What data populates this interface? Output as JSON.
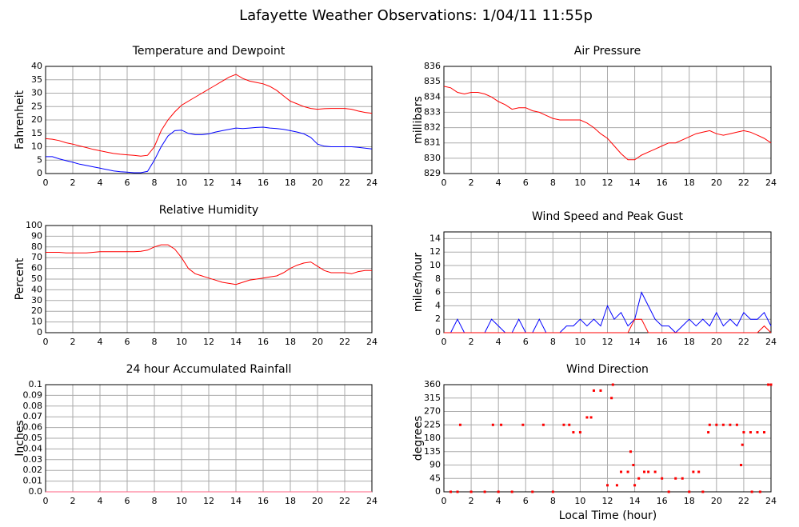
{
  "title": "Lafayette Weather Observations: 1/04/11 11:55p",
  "xlabel": "Local Time (hour)",
  "chart_data": [
    {
      "type": "line",
      "title": "Temperature and Dewpoint",
      "ylabel": "Fahrenheit",
      "x": [
        0,
        0.5,
        1,
        1.5,
        2,
        2.5,
        3,
        3.5,
        4,
        4.5,
        5,
        5.5,
        6,
        6.5,
        7,
        7.5,
        8,
        8.5,
        9,
        9.5,
        10,
        10.5,
        11,
        11.5,
        12,
        12.5,
        13,
        13.5,
        14,
        14.5,
        15,
        15.5,
        16,
        16.5,
        17,
        17.5,
        18,
        18.5,
        19,
        19.5,
        20,
        20.5,
        21,
        21.5,
        22,
        22.5,
        23,
        23.5,
        24
      ],
      "series": [
        {
          "color": "#ff0000",
          "values": [
            13,
            12.8,
            12.3,
            11.5,
            11,
            10.3,
            9.7,
            9,
            8.5,
            8,
            7.5,
            7.2,
            7,
            6.8,
            6.5,
            6.8,
            10,
            16,
            20,
            23,
            25.5,
            27,
            28.5,
            30,
            31.5,
            33,
            34.5,
            36,
            37,
            35.5,
            34.5,
            34,
            33.5,
            32.5,
            31,
            29,
            27,
            26,
            25,
            24.3,
            24,
            24.2,
            24.3,
            24.3,
            24.3,
            24,
            23.3,
            22.8,
            22.5
          ]
        },
        {
          "color": "#0000ff",
          "values": [
            6.3,
            6.3,
            5.5,
            4.8,
            4.2,
            3.5,
            3,
            2.5,
            2,
            1.5,
            1,
            0.7,
            0.5,
            0.3,
            0.3,
            0.8,
            5,
            10,
            14,
            16,
            16.2,
            15,
            14.5,
            14.5,
            14.8,
            15.5,
            16,
            16.5,
            17,
            16.8,
            17,
            17.2,
            17.3,
            17,
            16.8,
            16.5,
            16,
            15.5,
            14.8,
            13.5,
            11,
            10.2,
            10,
            10,
            10,
            10,
            9.8,
            9.5,
            9.2
          ]
        }
      ],
      "xlim": [
        0,
        24
      ],
      "xticks": [
        0,
        2,
        4,
        6,
        8,
        10,
        12,
        14,
        16,
        18,
        20,
        22,
        24
      ],
      "ylim": [
        0,
        40
      ],
      "yticks": [
        0,
        5,
        10,
        15,
        20,
        25,
        30,
        35,
        40
      ],
      "grid": true
    },
    {
      "type": "line",
      "title": "Air Pressure",
      "ylabel": "millibars",
      "x": [
        0,
        0.5,
        1,
        1.5,
        2,
        2.5,
        3,
        3.5,
        4,
        4.5,
        5,
        5.5,
        6,
        6.5,
        7,
        7.5,
        8,
        8.5,
        9,
        9.5,
        10,
        10.5,
        11,
        11.5,
        12,
        12.5,
        13,
        13.5,
        14,
        14.5,
        15,
        15.5,
        16,
        16.5,
        17,
        17.5,
        18,
        18.5,
        19,
        19.5,
        20,
        20.5,
        21,
        21.5,
        22,
        22.5,
        23,
        23.5,
        24
      ],
      "series": [
        {
          "color": "#ff0000",
          "values": [
            834.7,
            834.6,
            834.3,
            834.2,
            834.3,
            834.3,
            834.2,
            834,
            833.7,
            833.5,
            833.2,
            833.3,
            833.3,
            833.1,
            833,
            832.8,
            832.6,
            832.5,
            832.5,
            832.5,
            832.5,
            832.3,
            832,
            831.6,
            831.3,
            830.8,
            830.3,
            829.9,
            829.9,
            830.2,
            830.4,
            830.6,
            830.8,
            831,
            831,
            831.2,
            831.4,
            831.6,
            831.7,
            831.8,
            831.6,
            831.5,
            831.6,
            831.7,
            831.8,
            831.7,
            831.5,
            831.3,
            831
          ]
        }
      ],
      "xlim": [
        0,
        24
      ],
      "xticks": [
        0,
        2,
        4,
        6,
        8,
        10,
        12,
        14,
        16,
        18,
        20,
        22,
        24
      ],
      "ylim": [
        829,
        836
      ],
      "yticks": [
        829,
        830,
        831,
        832,
        833,
        834,
        835,
        836
      ],
      "grid": true
    },
    {
      "type": "line",
      "title": "Relative Humidity",
      "ylabel": "Percent",
      "x": [
        0,
        0.5,
        1,
        1.5,
        2,
        2.5,
        3,
        3.5,
        4,
        4.5,
        5,
        5.5,
        6,
        6.5,
        7,
        7.5,
        8,
        8.5,
        9,
        9.5,
        10,
        10.5,
        11,
        11.5,
        12,
        12.5,
        13,
        13.5,
        14,
        14.5,
        15,
        15.5,
        16,
        16.5,
        17,
        17.5,
        18,
        18.5,
        19,
        19.5,
        20,
        20.5,
        21,
        21.5,
        22,
        22.5,
        23,
        23.5,
        24
      ],
      "series": [
        {
          "color": "#ff0000",
          "values": [
            75,
            75,
            75,
            74.5,
            74.5,
            74.5,
            74.5,
            75,
            75.5,
            75.5,
            75.5,
            75.5,
            75.5,
            75.5,
            76,
            77,
            80,
            82,
            82,
            78,
            70,
            60,
            55,
            53,
            51,
            49,
            47,
            46,
            45,
            47,
            49,
            50,
            51,
            52,
            53,
            56,
            60,
            63,
            65,
            66,
            62,
            58,
            56,
            56,
            56,
            55,
            57,
            58,
            58
          ]
        }
      ],
      "xlim": [
        0,
        24
      ],
      "xticks": [
        0,
        2,
        4,
        6,
        8,
        10,
        12,
        14,
        16,
        18,
        20,
        22,
        24
      ],
      "ylim": [
        0,
        100
      ],
      "yticks": [
        0,
        10,
        20,
        30,
        40,
        50,
        60,
        70,
        80,
        90,
        100
      ],
      "grid": true
    },
    {
      "type": "line",
      "title": "Wind Speed and Peak Gust",
      "ylabel": "miles/hour",
      "x": [
        0,
        0.5,
        1,
        1.5,
        2,
        2.5,
        3,
        3.5,
        4,
        4.5,
        5,
        5.5,
        6,
        6.5,
        7,
        7.5,
        8,
        8.5,
        9,
        9.5,
        10,
        10.5,
        11,
        11.5,
        12,
        12.5,
        13,
        13.5,
        14,
        14.5,
        15,
        15.5,
        16,
        16.5,
        17,
        17.5,
        18,
        18.5,
        19,
        19.5,
        20,
        20.5,
        21,
        21.5,
        22,
        22.5,
        23,
        23.5,
        24
      ],
      "series": [
        {
          "color": "#0000ff",
          "values": [
            0,
            0,
            2,
            0,
            0,
            0,
            0,
            2,
            1,
            0,
            0,
            2,
            0,
            0,
            2,
            0,
            0,
            0,
            1,
            1,
            2,
            1,
            2,
            1,
            4,
            2,
            3,
            1,
            2,
            6,
            4,
            2,
            1,
            1,
            0,
            1,
            2,
            1,
            2,
            1,
            3,
            1,
            2,
            1,
            3,
            2,
            2,
            3,
            1
          ]
        },
        {
          "color": "#ff0000",
          "values": [
            0,
            0,
            0,
            0,
            0,
            0,
            0,
            0,
            0,
            0,
            0,
            0,
            0,
            0,
            0,
            0,
            0,
            0,
            0,
            0,
            0,
            0,
            0,
            0,
            0,
            0,
            0,
            0,
            2,
            2,
            0,
            0,
            0,
            0,
            0,
            0,
            0,
            0,
            0,
            0,
            0,
            0,
            0,
            0,
            0,
            0,
            0,
            1,
            0
          ]
        }
      ],
      "xlim": [
        0,
        24
      ],
      "xticks": [
        0,
        2,
        4,
        6,
        8,
        10,
        12,
        14,
        16,
        18,
        20,
        22,
        24
      ],
      "ylim": [
        0,
        15
      ],
      "yticks": [
        0,
        2,
        4,
        6,
        8,
        10,
        12,
        14
      ],
      "grid": true
    },
    {
      "type": "line",
      "title": "24 hour Accumulated Rainfall",
      "ylabel": "Inches",
      "x": [
        0,
        24
      ],
      "series": [
        {
          "color": "#ff6080",
          "values": [
            0,
            0
          ]
        }
      ],
      "xlim": [
        0,
        24
      ],
      "xticks": [
        0,
        2,
        4,
        6,
        8,
        10,
        12,
        14,
        16,
        18,
        20,
        22,
        24
      ],
      "ylim": [
        0,
        0.1
      ],
      "yticks": [
        {
          "value": 0,
          "label": "0.0"
        },
        0.01,
        0.02,
        0.03,
        0.04,
        0.05,
        0.06,
        0.07,
        0.08,
        0.09,
        0.1
      ],
      "grid": true
    },
    {
      "type": "scatter",
      "title": "Wind Direction",
      "ylabel": "degrees",
      "x": [
        0.5,
        1,
        1.2,
        2,
        3,
        3.6,
        4,
        4.2,
        5,
        5.8,
        6.5,
        7.3,
        8,
        8.8,
        9.2,
        9.5,
        10,
        10.5,
        10.8,
        11,
        11.5,
        12,
        12.3,
        12.4,
        12.7,
        13,
        13.5,
        13.7,
        13.9,
        14,
        14.3,
        14.7,
        15,
        15.5,
        16,
        16.5,
        17,
        17.5,
        18,
        18.3,
        18.7,
        19,
        19.4,
        19.5,
        20,
        20.5,
        21,
        21.5,
        21.8,
        21.9,
        22,
        22.5,
        23,
        23.5,
        23.8,
        24,
        22.6,
        23.2
      ],
      "series": [
        {
          "color": "#ff0000",
          "values": [
            0,
            0,
            225,
            0,
            0,
            225,
            0,
            225,
            0,
            225,
            0,
            225,
            0,
            225,
            225,
            200,
            200,
            250,
            250,
            340,
            340,
            22,
            315,
            360,
            22,
            67,
            67,
            135,
            90,
            22,
            45,
            67,
            67,
            67,
            45,
            0,
            45,
            45,
            0,
            67,
            67,
            0,
            200,
            225,
            225,
            225,
            225,
            225,
            90,
            158,
            200,
            200,
            200,
            200,
            360,
            360,
            0,
            0
          ]
        }
      ],
      "xlim": [
        0,
        24
      ],
      "xticks": [
        0,
        2,
        4,
        6,
        8,
        10,
        12,
        14,
        16,
        18,
        20,
        22,
        24
      ],
      "ylim": [
        0,
        360
      ],
      "yticks": [
        0,
        45,
        90,
        135,
        180,
        225,
        270,
        315,
        360
      ],
      "grid": true
    }
  ]
}
